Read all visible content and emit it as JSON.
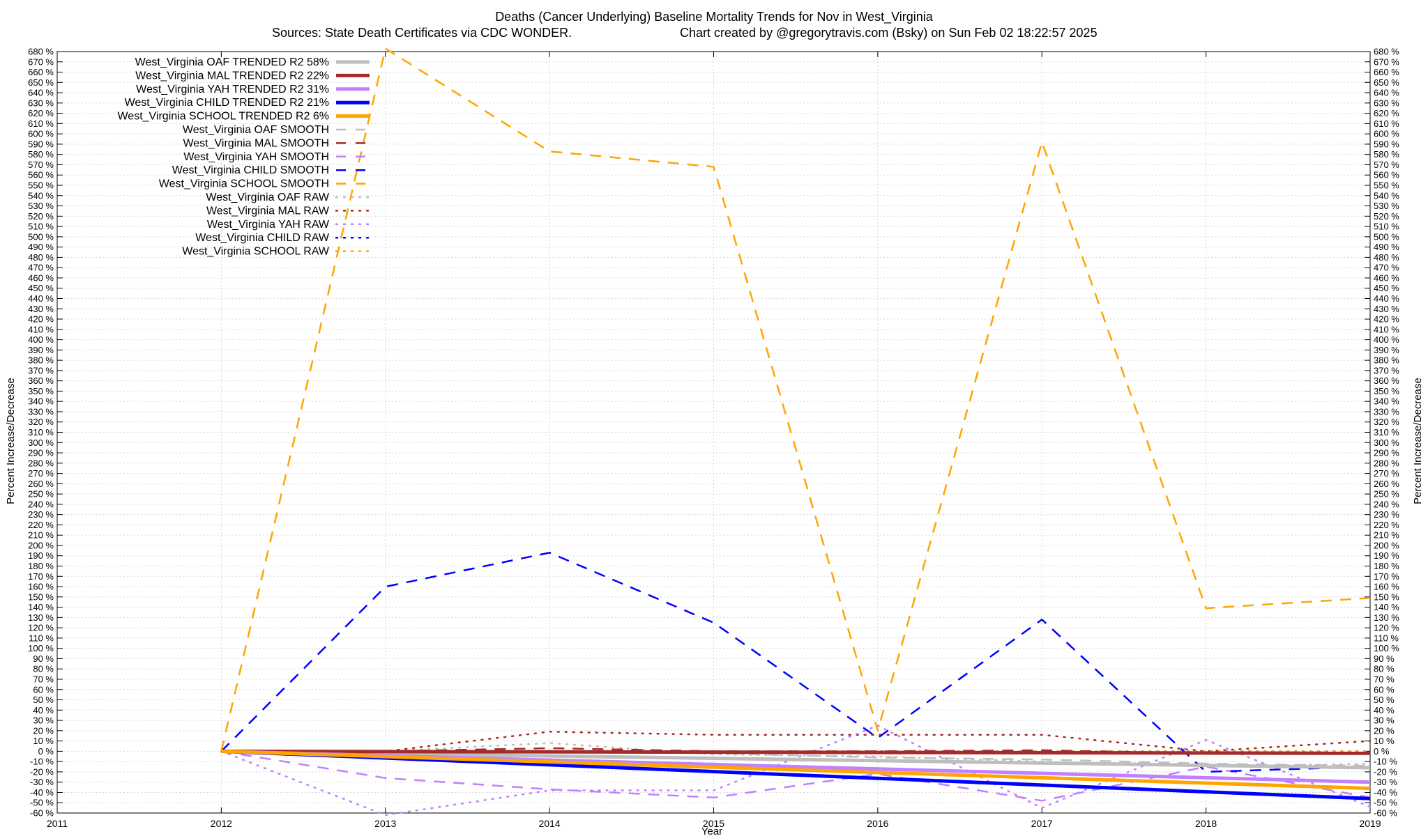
{
  "chart_data": {
    "type": "line",
    "title": "Deaths (Cancer Underlying)  Baseline Mortality Trends for Nov in West_Virginia",
    "subtitle_left": "Sources: State Death Certificates via CDC WONDER.",
    "subtitle_right": "Chart created by @gregorytravis.com (Bsky) on Sun Feb 02 18:22:57 2025",
    "xlabel": "Year",
    "ylabel": "Percent Increase/Decrease",
    "y2label": "Percent Increase/Decrease",
    "xlim": [
      2011,
      2019
    ],
    "ylim": [
      -60,
      680
    ],
    "ytick_step": 10,
    "y_unit_suffix": " %",
    "grid": true,
    "legend_position": "top-left",
    "x_ticks": [
      "2011",
      "2012",
      "2013",
      "2014",
      "2015",
      "2016",
      "2017",
      "2018",
      "2019"
    ],
    "series": [
      {
        "name": "West_Virginia OAF TRENDED R2  58%",
        "style": "trended",
        "color": "#bebebe",
        "x": [
          2012,
          2019
        ],
        "y": [
          0,
          -16
        ]
      },
      {
        "name": "West_Virginia MAL TRENDED R2  22%",
        "style": "trended",
        "color": "#a52a2a",
        "x": [
          2012,
          2019
        ],
        "y": [
          0,
          -2
        ]
      },
      {
        "name": "West_Virginia YAH TRENDED R2  31%",
        "style": "trended",
        "color": "#c080ff",
        "x": [
          2012,
          2019
        ],
        "y": [
          0,
          -30
        ]
      },
      {
        "name": "West_Virginia CHILD TRENDED R2  21%",
        "style": "trended",
        "color": "#0000ff",
        "x": [
          2012,
          2019
        ],
        "y": [
          0,
          -46
        ]
      },
      {
        "name": "West_Virginia SCHOOL TRENDED R2   6%",
        "style": "trended",
        "color": "#ffa500",
        "x": [
          2012,
          2019
        ],
        "y": [
          0,
          -36
        ]
      },
      {
        "name": "West_Virginia OAF SMOOTH",
        "style": "smooth",
        "color": "#bebebe",
        "x": [
          2012,
          2013,
          2014,
          2015,
          2016,
          2017,
          2018,
          2019
        ],
        "y": [
          0,
          0,
          0,
          -2,
          -6,
          -8,
          -12,
          -14
        ]
      },
      {
        "name": "West_Virginia MAL SMOOTH",
        "style": "smooth",
        "color": "#a52a2a",
        "x": [
          2012,
          2013,
          2014,
          2015,
          2016,
          2017,
          2018,
          2019
        ],
        "y": [
          0,
          0,
          3,
          0,
          0,
          1,
          -2,
          -2
        ]
      },
      {
        "name": "West_Virginia YAH SMOOTH",
        "style": "smooth",
        "color": "#c080ff",
        "x": [
          2012,
          2013,
          2014,
          2015,
          2016,
          2017,
          2018,
          2019
        ],
        "y": [
          0,
          -26,
          -37,
          -45,
          -22,
          -48,
          -15,
          -45
        ]
      },
      {
        "name": "West_Virginia CHILD SMOOTH",
        "style": "smooth",
        "color": "#0000ff",
        "x": [
          2012,
          2013,
          2014,
          2015,
          2016,
          2017,
          2018,
          2019
        ],
        "y": [
          0,
          160,
          193,
          125,
          13,
          128,
          -20,
          -15
        ]
      },
      {
        "name": "West_Virginia SCHOOL SMOOTH",
        "style": "smooth",
        "color": "#ffa500",
        "x": [
          2012,
          2013,
          2014,
          2015,
          2016,
          2017,
          2018,
          2019
        ],
        "y": [
          0,
          683,
          583,
          568,
          20,
          592,
          139,
          149
        ]
      },
      {
        "name": "West_Virginia OAF RAW",
        "style": "raw",
        "color": "#bebebe",
        "x": [
          2012,
          2013,
          2014,
          2015,
          2016,
          2017,
          2018,
          2019
        ],
        "y": [
          0,
          0,
          8,
          -3,
          -5,
          -10,
          -15,
          -12
        ]
      },
      {
        "name": "West_Virginia MAL RAW",
        "style": "raw",
        "color": "#a52a2a",
        "x": [
          2012,
          2013,
          2014,
          2015,
          2016,
          2017,
          2018,
          2019
        ],
        "y": [
          0,
          0,
          19,
          16,
          16,
          16,
          0,
          10
        ]
      },
      {
        "name": "West_Virginia YAH RAW",
        "style": "raw",
        "color": "#c080ff",
        "x": [
          2012,
          2013,
          2014,
          2015,
          2016,
          2017,
          2018,
          2019
        ],
        "y": [
          0,
          -62,
          -38,
          -38,
          25,
          -55,
          11,
          -54
        ]
      },
      {
        "name": "West_Virginia CHILD RAW",
        "style": "raw",
        "color": "#0000ff",
        "x": [
          2012,
          2013,
          2014,
          2015,
          2016,
          2017,
          2018,
          2019
        ],
        "y": [
          0,
          0,
          0,
          0,
          0,
          0,
          0,
          0
        ]
      },
      {
        "name": "West_Virginia SCHOOL RAW",
        "style": "raw",
        "color": "#ffa500",
        "x": [
          2012,
          2013,
          2014,
          2015,
          2016,
          2017,
          2018,
          2019
        ],
        "y": [
          0,
          0,
          0,
          0,
          0,
          0,
          0,
          0
        ]
      }
    ]
  }
}
